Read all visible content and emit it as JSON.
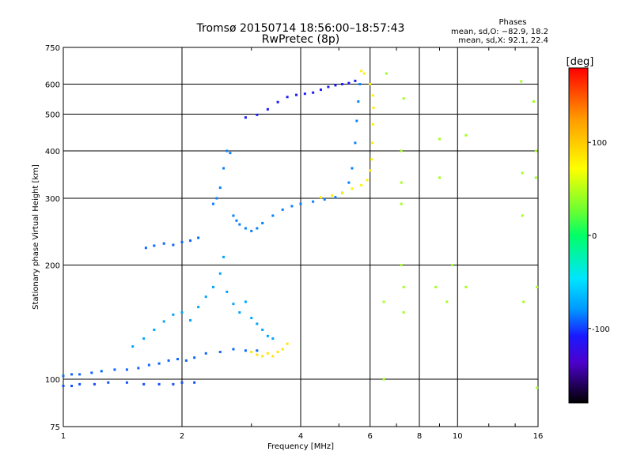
{
  "chart_data": {
    "type": "scatter",
    "title": "Tromsø 20150714 18:56:00–18:57:43",
    "subtitle": "RwPretec (8p)",
    "phases": {
      "heading": "Phases",
      "line_o": "mean, sd,O: −82.9, 18.2",
      "line_x": "mean, sd,X:  92.1, 22.4"
    },
    "xlabel": "Frequency [MHz]",
    "ylabel": "Stationary phase Virtual Height [km]",
    "x_scale": "log",
    "y_scale": "log",
    "xlim": [
      1,
      16
    ],
    "ylim": [
      75,
      750
    ],
    "x_ticks": [
      1,
      2,
      4,
      6,
      8,
      10,
      16
    ],
    "y_ticks": [
      75,
      100,
      200,
      300,
      400,
      500,
      600,
      750
    ],
    "grid": true,
    "colorbar": {
      "label": "[deg]",
      "range": [
        -180,
        180
      ],
      "ticks": [
        100,
        0,
        -100
      ]
    },
    "traces": [
      {
        "name": "lower_blue_band",
        "phase": -95,
        "points": [
          [
            1.0,
            102
          ],
          [
            1.05,
            103
          ],
          [
            1.1,
            103
          ],
          [
            1.18,
            104
          ],
          [
            1.25,
            105
          ],
          [
            1.35,
            106
          ],
          [
            1.45,
            106
          ],
          [
            1.55,
            107
          ],
          [
            1.65,
            109
          ],
          [
            1.75,
            110
          ],
          [
            1.85,
            112
          ],
          [
            1.95,
            113
          ],
          [
            2.05,
            112
          ],
          [
            2.15,
            114
          ],
          [
            2.3,
            117
          ],
          [
            2.5,
            118
          ],
          [
            2.7,
            120
          ],
          [
            2.9,
            119
          ],
          [
            3.1,
            119
          ]
        ]
      },
      {
        "name": "bottom_blue_band",
        "phase": -100,
        "points": [
          [
            1.0,
            96
          ],
          [
            1.05,
            96
          ],
          [
            1.1,
            97
          ],
          [
            1.2,
            97
          ],
          [
            1.3,
            98
          ],
          [
            1.45,
            98
          ],
          [
            1.6,
            97
          ],
          [
            1.75,
            97
          ],
          [
            1.9,
            97
          ],
          [
            2.0,
            98
          ],
          [
            2.15,
            98
          ]
        ]
      },
      {
        "name": "lower_cyan_scatter",
        "phase": -80,
        "points": [
          [
            1.5,
            122
          ],
          [
            1.6,
            128
          ],
          [
            1.7,
            135
          ],
          [
            1.8,
            142
          ],
          [
            1.9,
            148
          ],
          [
            2.0,
            150
          ],
          [
            2.1,
            143
          ],
          [
            2.2,
            155
          ],
          [
            2.3,
            165
          ],
          [
            2.4,
            175
          ],
          [
            2.5,
            190
          ],
          [
            2.55,
            210
          ],
          [
            2.6,
            170
          ],
          [
            2.7,
            158
          ],
          [
            2.8,
            150
          ],
          [
            2.9,
            160
          ],
          [
            3.0,
            145
          ],
          [
            3.1,
            140
          ],
          [
            3.2,
            135
          ],
          [
            3.3,
            130
          ],
          [
            3.4,
            128
          ]
        ]
      },
      {
        "name": "yellow_cluster_low",
        "phase": 100,
        "points": [
          [
            3.0,
            118
          ],
          [
            3.1,
            116
          ],
          [
            3.2,
            115
          ],
          [
            3.3,
            117
          ],
          [
            3.4,
            115
          ],
          [
            3.5,
            118
          ],
          [
            3.6,
            120
          ],
          [
            3.7,
            124
          ]
        ]
      },
      {
        "name": "E_F1_blue",
        "phase": -95,
        "points": [
          [
            1.62,
            222
          ],
          [
            1.7,
            225
          ],
          [
            1.8,
            228
          ],
          [
            1.9,
            226
          ],
          [
            2.0,
            230
          ],
          [
            2.1,
            232
          ],
          [
            2.2,
            236
          ]
        ]
      },
      {
        "name": "cusp_blue",
        "phase": -90,
        "points": [
          [
            2.4,
            290
          ],
          [
            2.45,
            300
          ],
          [
            2.5,
            320
          ],
          [
            2.55,
            360
          ],
          [
            2.6,
            400
          ],
          [
            2.65,
            395
          ],
          [
            2.7,
            270
          ],
          [
            2.75,
            262
          ],
          [
            2.8,
            256
          ],
          [
            2.9,
            250
          ],
          [
            3.0,
            246
          ],
          [
            3.1,
            250
          ],
          [
            3.2,
            258
          ],
          [
            3.4,
            270
          ],
          [
            3.6,
            280
          ],
          [
            3.8,
            286
          ],
          [
            4.0,
            290
          ],
          [
            4.3,
            294
          ],
          [
            4.6,
            298
          ],
          [
            4.9,
            302
          ],
          [
            5.1,
            310
          ],
          [
            5.3,
            330
          ],
          [
            5.4,
            360
          ],
          [
            5.5,
            420
          ],
          [
            5.55,
            480
          ],
          [
            5.6,
            540
          ],
          [
            5.65,
            600
          ]
        ]
      },
      {
        "name": "O_mode_upper_blue",
        "phase": -110,
        "points": [
          [
            2.9,
            490
          ],
          [
            3.1,
            498
          ],
          [
            3.3,
            515
          ],
          [
            3.5,
            538
          ],
          [
            3.7,
            555
          ],
          [
            3.9,
            562
          ],
          [
            4.1,
            566
          ],
          [
            4.3,
            570
          ],
          [
            4.5,
            580
          ],
          [
            4.7,
            590
          ],
          [
            4.9,
            596
          ],
          [
            5.1,
            600
          ],
          [
            5.3,
            604
          ],
          [
            5.5,
            612
          ]
        ]
      },
      {
        "name": "X_mode_yellow",
        "phase": 95,
        "points": [
          [
            4.5,
            302
          ],
          [
            4.8,
            305
          ],
          [
            5.1,
            310
          ],
          [
            5.4,
            318
          ],
          [
            5.7,
            325
          ],
          [
            5.9,
            335
          ],
          [
            6.0,
            355
          ],
          [
            6.05,
            380
          ],
          [
            6.08,
            420
          ],
          [
            6.1,
            470
          ],
          [
            6.12,
            520
          ],
          [
            6.1,
            560
          ],
          [
            6.0,
            600
          ],
          [
            5.8,
            640
          ],
          [
            5.7,
            650
          ]
        ]
      },
      {
        "name": "sparse_noise",
        "phase": 60,
        "points": [
          [
            6.5,
            100
          ],
          [
            6.5,
            160
          ],
          [
            6.6,
            640
          ],
          [
            7.2,
            400
          ],
          [
            7.2,
            330
          ],
          [
            7.2,
            290
          ],
          [
            7.2,
            200
          ],
          [
            7.3,
            550
          ],
          [
            7.3,
            175
          ],
          [
            7.3,
            150
          ],
          [
            8.8,
            175
          ],
          [
            9.0,
            430
          ],
          [
            9.0,
            340
          ],
          [
            9.4,
            160
          ],
          [
            9.7,
            200
          ],
          [
            10.5,
            175
          ],
          [
            10.5,
            440
          ],
          [
            14.5,
            610
          ],
          [
            14.6,
            350
          ],
          [
            14.6,
            270
          ],
          [
            14.7,
            160
          ],
          [
            15.6,
            540
          ],
          [
            15.8,
            400
          ],
          [
            15.8,
            340
          ],
          [
            15.9,
            175
          ],
          [
            15.9,
            95
          ]
        ]
      }
    ]
  }
}
